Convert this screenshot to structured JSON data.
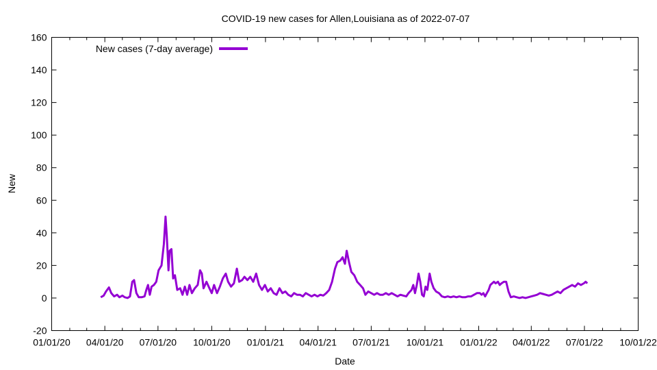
{
  "chart_data": {
    "type": "line",
    "title": "COVID-19 new cases for Allen,Louisiana as of 2022-07-07",
    "xlabel": "Date",
    "ylabel": "New",
    "xlim": [
      "2020-01-01",
      "2022-10-01"
    ],
    "ylim": [
      -20,
      160
    ],
    "x_ticks": [
      "01/01/20",
      "04/01/20",
      "07/01/20",
      "10/01/20",
      "01/01/21",
      "04/01/21",
      "07/01/21",
      "10/01/21",
      "01/01/22",
      "04/01/22",
      "07/01/22",
      "10/01/22"
    ],
    "y_ticks": [
      -20,
      0,
      20,
      40,
      60,
      80,
      100,
      120,
      140,
      160
    ],
    "legend_position": "top-left",
    "grid": false,
    "series": [
      {
        "name": "New cases (7-day average)",
        "color": "#9400d3",
        "points": [
          [
            "2020-03-25",
            0.5
          ],
          [
            "2020-03-30",
            1.5
          ],
          [
            "2020-04-03",
            4
          ],
          [
            "2020-04-08",
            6.5
          ],
          [
            "2020-04-12",
            3
          ],
          [
            "2020-04-17",
            1
          ],
          [
            "2020-04-22",
            2
          ],
          [
            "2020-04-26",
            0.5
          ],
          [
            "2020-05-01",
            1.5
          ],
          [
            "2020-05-05",
            0.5
          ],
          [
            "2020-05-10",
            0
          ],
          [
            "2020-05-14",
            1
          ],
          [
            "2020-05-18",
            10
          ],
          [
            "2020-05-21",
            11
          ],
          [
            "2020-05-25",
            3
          ],
          [
            "2020-05-29",
            0.5
          ],
          [
            "2020-06-03",
            0.5
          ],
          [
            "2020-06-08",
            1
          ],
          [
            "2020-06-11",
            5
          ],
          [
            "2020-06-14",
            8
          ],
          [
            "2020-06-17",
            2
          ],
          [
            "2020-06-20",
            7
          ],
          [
            "2020-06-24",
            8
          ],
          [
            "2020-06-28",
            10
          ],
          [
            "2020-07-02",
            17
          ],
          [
            "2020-07-07",
            20
          ],
          [
            "2020-07-11",
            33
          ],
          [
            "2020-07-14",
            50
          ],
          [
            "2020-07-16",
            38
          ],
          [
            "2020-07-19",
            17
          ],
          [
            "2020-07-21",
            29
          ],
          [
            "2020-07-24",
            30
          ],
          [
            "2020-07-27",
            12
          ],
          [
            "2020-07-30",
            14
          ],
          [
            "2020-08-03",
            5
          ],
          [
            "2020-08-08",
            6
          ],
          [
            "2020-08-12",
            2
          ],
          [
            "2020-08-16",
            7
          ],
          [
            "2020-08-20",
            2
          ],
          [
            "2020-08-24",
            8
          ],
          [
            "2020-08-28",
            3
          ],
          [
            "2020-09-02",
            6
          ],
          [
            "2020-09-07",
            8
          ],
          [
            "2020-09-11",
            17
          ],
          [
            "2020-09-14",
            15
          ],
          [
            "2020-09-17",
            6
          ],
          [
            "2020-09-22",
            10
          ],
          [
            "2020-09-27",
            6
          ],
          [
            "2020-10-01",
            3
          ],
          [
            "2020-10-05",
            8
          ],
          [
            "2020-10-10",
            3
          ],
          [
            "2020-10-15",
            7
          ],
          [
            "2020-10-20",
            12
          ],
          [
            "2020-10-25",
            15
          ],
          [
            "2020-10-29",
            10
          ],
          [
            "2020-11-03",
            7
          ],
          [
            "2020-11-08",
            9
          ],
          [
            "2020-11-13",
            18
          ],
          [
            "2020-11-17",
            10
          ],
          [
            "2020-11-22",
            11
          ],
          [
            "2020-11-26",
            13
          ],
          [
            "2020-12-01",
            11
          ],
          [
            "2020-12-06",
            13
          ],
          [
            "2020-12-11",
            10
          ],
          [
            "2020-12-16",
            15
          ],
          [
            "2020-12-21",
            8
          ],
          [
            "2020-12-26",
            5
          ],
          [
            "2020-12-31",
            8
          ],
          [
            "2021-01-05",
            4
          ],
          [
            "2021-01-10",
            6
          ],
          [
            "2021-01-15",
            3
          ],
          [
            "2021-01-20",
            2
          ],
          [
            "2021-01-25",
            6
          ],
          [
            "2021-01-30",
            3
          ],
          [
            "2021-02-04",
            4
          ],
          [
            "2021-02-09",
            2
          ],
          [
            "2021-02-14",
            1
          ],
          [
            "2021-02-19",
            3
          ],
          [
            "2021-02-24",
            2
          ],
          [
            "2021-03-01",
            2
          ],
          [
            "2021-03-06",
            1
          ],
          [
            "2021-03-11",
            3
          ],
          [
            "2021-03-16",
            2
          ],
          [
            "2021-03-21",
            1
          ],
          [
            "2021-03-26",
            2
          ],
          [
            "2021-03-31",
            1
          ],
          [
            "2021-04-05",
            2
          ],
          [
            "2021-04-10",
            1.5
          ],
          [
            "2021-04-15",
            3
          ],
          [
            "2021-04-20",
            5
          ],
          [
            "2021-04-25",
            10
          ],
          [
            "2021-04-30",
            18
          ],
          [
            "2021-05-04",
            22
          ],
          [
            "2021-05-09",
            23
          ],
          [
            "2021-05-13",
            25
          ],
          [
            "2021-05-17",
            21
          ],
          [
            "2021-05-20",
            29
          ],
          [
            "2021-05-24",
            22
          ],
          [
            "2021-05-28",
            16
          ],
          [
            "2021-06-02",
            14
          ],
          [
            "2021-06-07",
            10
          ],
          [
            "2021-06-12",
            8
          ],
          [
            "2021-06-17",
            6
          ],
          [
            "2021-06-21",
            2
          ],
          [
            "2021-06-26",
            4
          ],
          [
            "2021-07-01",
            3
          ],
          [
            "2021-07-06",
            2
          ],
          [
            "2021-07-11",
            3
          ],
          [
            "2021-07-16",
            2
          ],
          [
            "2021-07-21",
            2
          ],
          [
            "2021-07-26",
            3
          ],
          [
            "2021-07-31",
            2
          ],
          [
            "2021-08-05",
            3
          ],
          [
            "2021-08-10",
            2
          ],
          [
            "2021-08-15",
            1
          ],
          [
            "2021-08-20",
            2
          ],
          [
            "2021-08-25",
            1.5
          ],
          [
            "2021-08-30",
            1
          ],
          [
            "2021-09-03",
            3
          ],
          [
            "2021-09-08",
            5
          ],
          [
            "2021-09-11",
            8
          ],
          [
            "2021-09-14",
            3
          ],
          [
            "2021-09-17",
            8
          ],
          [
            "2021-09-20",
            15
          ],
          [
            "2021-09-23",
            10
          ],
          [
            "2021-09-26",
            2
          ],
          [
            "2021-09-29",
            1
          ],
          [
            "2021-10-02",
            7
          ],
          [
            "2021-10-05",
            5
          ],
          [
            "2021-10-09",
            15
          ],
          [
            "2021-10-12",
            10
          ],
          [
            "2021-10-16",
            6
          ],
          [
            "2021-10-20",
            4
          ],
          [
            "2021-10-25",
            3
          ],
          [
            "2021-10-30",
            1
          ],
          [
            "2021-11-04",
            0.5
          ],
          [
            "2021-11-09",
            1
          ],
          [
            "2021-11-14",
            0.5
          ],
          [
            "2021-11-19",
            1
          ],
          [
            "2021-11-24",
            0.5
          ],
          [
            "2021-11-29",
            1
          ],
          [
            "2021-12-04",
            0.5
          ],
          [
            "2021-12-09",
            0.5
          ],
          [
            "2021-12-14",
            1
          ],
          [
            "2021-12-19",
            1
          ],
          [
            "2021-12-24",
            2
          ],
          [
            "2021-12-29",
            3
          ],
          [
            "2022-01-03",
            3
          ],
          [
            "2022-01-06",
            2
          ],
          [
            "2022-01-09",
            3
          ],
          [
            "2022-01-12",
            1
          ],
          [
            "2022-01-15",
            3
          ],
          [
            "2022-01-18",
            5
          ],
          [
            "2022-01-21",
            8
          ],
          [
            "2022-01-24",
            9
          ],
          [
            "2022-01-27",
            10
          ],
          [
            "2022-01-30",
            9
          ],
          [
            "2022-02-03",
            10
          ],
          [
            "2022-02-06",
            8
          ],
          [
            "2022-02-09",
            9
          ],
          [
            "2022-02-13",
            10
          ],
          [
            "2022-02-17",
            10
          ],
          [
            "2022-02-21",
            4
          ],
          [
            "2022-02-25",
            0.5
          ],
          [
            "2022-03-02",
            1
          ],
          [
            "2022-03-07",
            0.5
          ],
          [
            "2022-03-12",
            0
          ],
          [
            "2022-03-17",
            0.5
          ],
          [
            "2022-03-22",
            0
          ],
          [
            "2022-03-27",
            0.5
          ],
          [
            "2022-04-01",
            1
          ],
          [
            "2022-04-06",
            1.5
          ],
          [
            "2022-04-11",
            2
          ],
          [
            "2022-04-16",
            3
          ],
          [
            "2022-04-21",
            2.5
          ],
          [
            "2022-04-26",
            2
          ],
          [
            "2022-05-01",
            1.5
          ],
          [
            "2022-05-06",
            2
          ],
          [
            "2022-05-11",
            3
          ],
          [
            "2022-05-16",
            4
          ],
          [
            "2022-05-21",
            3
          ],
          [
            "2022-05-26",
            5
          ],
          [
            "2022-05-31",
            6
          ],
          [
            "2022-06-05",
            7
          ],
          [
            "2022-06-10",
            8
          ],
          [
            "2022-06-15",
            7
          ],
          [
            "2022-06-20",
            9
          ],
          [
            "2022-06-25",
            8
          ],
          [
            "2022-06-30",
            9
          ],
          [
            "2022-07-03",
            10
          ],
          [
            "2022-07-06",
            9
          ]
        ]
      }
    ]
  }
}
